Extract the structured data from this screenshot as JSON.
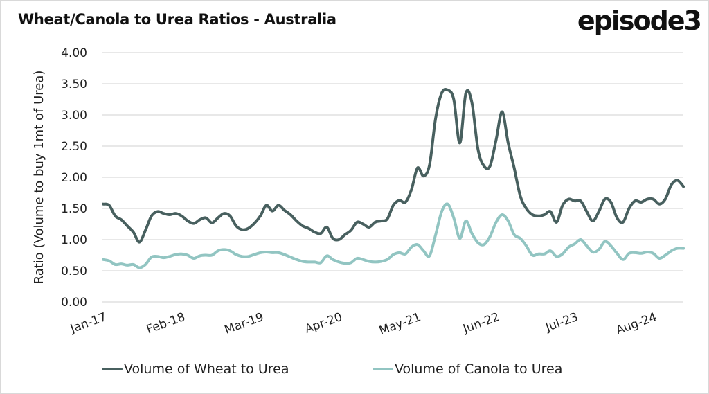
{
  "header": {
    "title": "Wheat/Canola to Urea Ratios - Australia",
    "logo": "episode3"
  },
  "colors": {
    "wheat": "#48605f",
    "canola": "#92c5c2",
    "grid": "#d9d9d9"
  },
  "chart_data": {
    "type": "line",
    "title": "Wheat/Canola to Urea Ratios - Australia",
    "xlabel": "",
    "ylabel": "Ratio (Volume to buy 1mt of Urea)",
    "ylim": [
      0,
      4
    ],
    "yticks": [
      "0.00",
      "0.50",
      "1.00",
      "1.50",
      "2.00",
      "2.50",
      "3.00",
      "3.50",
      "4.00"
    ],
    "xtick_labels": [
      "Jan-17",
      "Feb-18",
      "Mar-19",
      "Apr-20",
      "May-21",
      "Jun-22",
      "Jul-23",
      "Aug-24"
    ],
    "xtick_interval_months": 13,
    "x_start": "Jan-17",
    "x_frequency": "monthly",
    "grid": true,
    "legend_position": "bottom",
    "series": [
      {
        "name": "Volume of Wheat to Urea",
        "values": [
          1.57,
          1.55,
          1.38,
          1.32,
          1.22,
          1.12,
          0.96,
          1.15,
          1.38,
          1.45,
          1.42,
          1.4,
          1.42,
          1.38,
          1.3,
          1.26,
          1.32,
          1.35,
          1.27,
          1.35,
          1.42,
          1.38,
          1.22,
          1.16,
          1.18,
          1.26,
          1.38,
          1.55,
          1.46,
          1.55,
          1.47,
          1.4,
          1.3,
          1.22,
          1.18,
          1.12,
          1.1,
          1.2,
          1.02,
          1.0,
          1.08,
          1.15,
          1.28,
          1.25,
          1.2,
          1.28,
          1.3,
          1.33,
          1.55,
          1.63,
          1.6,
          1.8,
          2.15,
          2.02,
          2.2,
          2.95,
          3.35,
          3.4,
          3.25,
          2.55,
          3.35,
          3.2,
          2.45,
          2.18,
          2.18,
          2.6,
          3.05,
          2.55,
          2.15,
          1.7,
          1.5,
          1.4,
          1.38,
          1.4,
          1.45,
          1.28,
          1.55,
          1.65,
          1.62,
          1.62,
          1.45,
          1.3,
          1.45,
          1.65,
          1.6,
          1.35,
          1.28,
          1.5,
          1.62,
          1.6,
          1.65,
          1.65,
          1.57,
          1.65,
          1.88,
          1.95,
          1.85
        ]
      },
      {
        "name": "Volume of Canola to Urea",
        "values": [
          0.68,
          0.66,
          0.6,
          0.61,
          0.59,
          0.6,
          0.55,
          0.6,
          0.72,
          0.73,
          0.71,
          0.73,
          0.76,
          0.77,
          0.75,
          0.7,
          0.74,
          0.75,
          0.75,
          0.82,
          0.84,
          0.82,
          0.76,
          0.73,
          0.73,
          0.76,
          0.79,
          0.8,
          0.79,
          0.79,
          0.76,
          0.72,
          0.68,
          0.65,
          0.64,
          0.64,
          0.63,
          0.74,
          0.68,
          0.64,
          0.62,
          0.63,
          0.7,
          0.68,
          0.65,
          0.64,
          0.65,
          0.68,
          0.76,
          0.79,
          0.77,
          0.88,
          0.92,
          0.82,
          0.74,
          1.08,
          1.45,
          1.57,
          1.35,
          1.02,
          1.3,
          1.1,
          0.95,
          0.92,
          1.05,
          1.28,
          1.4,
          1.3,
          1.08,
          1.02,
          0.9,
          0.75,
          0.77,
          0.77,
          0.82,
          0.73,
          0.77,
          0.88,
          0.93,
          1.0,
          0.9,
          0.8,
          0.84,
          0.97,
          0.9,
          0.78,
          0.68,
          0.78,
          0.79,
          0.78,
          0.8,
          0.78,
          0.7,
          0.75,
          0.82,
          0.86,
          0.86
        ]
      }
    ]
  }
}
